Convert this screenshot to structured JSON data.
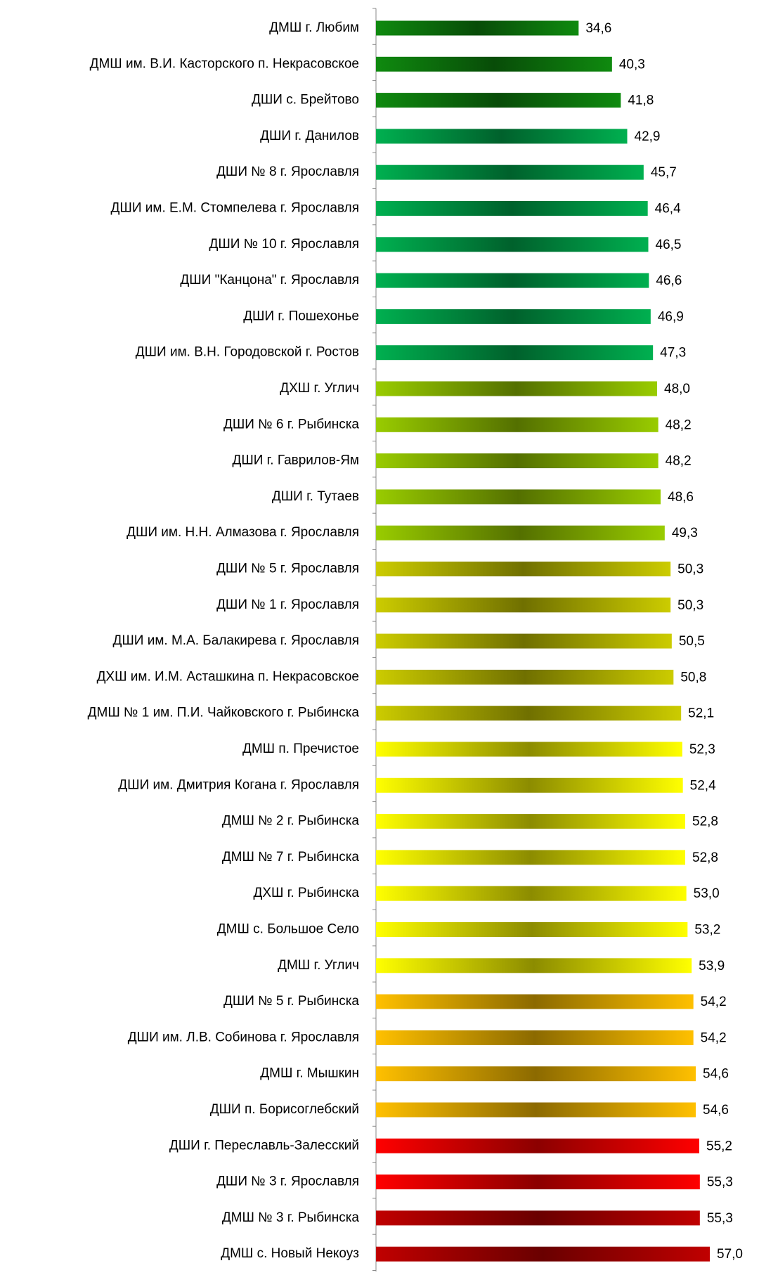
{
  "chart_data": {
    "type": "bar",
    "orientation": "horizontal",
    "categories": [
      "ДМШ г. Любим",
      "ДМШ им. В.И. Касторского п. Некрасовское",
      "ДШИ с. Брейтово",
      "ДШИ г. Данилов",
      "ДШИ № 8 г. Ярославля",
      "ДШИ им. Е.М. Стомпелева г. Ярославля",
      "ДШИ № 10 г. Ярославля",
      "ДШИ \"Канцона\" г. Ярославля",
      "ДШИ г. Пошехонье",
      "ДШИ им. В.Н. Городовской г. Ростов",
      "ДХШ г. Углич",
      "ДШИ № 6 г. Рыбинска",
      "ДШИ г. Гаврилов-Ям",
      "ДШИ г. Тутаев",
      "ДШИ им. Н.Н. Алмазова г. Ярославля",
      "ДШИ № 5 г. Ярославля",
      "ДШИ № 1 г. Ярославля",
      "ДШИ им. М.А. Балакирева г. Ярославля",
      "ДХШ им. И.М. Асташкина п. Некрасовское",
      "ДМШ № 1 им. П.И. Чайковского г. Рыбинска",
      "ДМШ п. Пречистое",
      "ДШИ им. Дмитрия Когана г. Ярославля",
      "ДМШ № 2 г. Рыбинска",
      "ДМШ № 7 г. Рыбинска",
      "ДХШ г. Рыбинска",
      "ДМШ с. Большое Село",
      "ДМШ г. Углич",
      "ДШИ № 5 г. Рыбинска",
      "ДШИ им. Л.В. Собинова г. Ярославля",
      "ДМШ г. Мышкин",
      "ДШИ п. Борисоглебский",
      "ДШИ г. Переславль-Залесский",
      "ДШИ № 3 г. Ярославля",
      "ДМШ № 3 г. Рыбинска",
      "ДМШ с. Новый Некоуз"
    ],
    "values": [
      34.6,
      40.3,
      41.8,
      42.9,
      45.7,
      46.4,
      46.5,
      46.6,
      46.9,
      47.3,
      48.0,
      48.2,
      48.2,
      48.6,
      49.3,
      50.3,
      50.3,
      50.5,
      50.8,
      52.1,
      52.3,
      52.4,
      52.8,
      52.8,
      53.0,
      53.2,
      53.9,
      54.2,
      54.2,
      54.6,
      54.6,
      55.2,
      55.3,
      55.3,
      57.0
    ],
    "value_labels": [
      "34,6",
      "40,3",
      "41,8",
      "42,9",
      "45,7",
      "46,4",
      "46,5",
      "46,6",
      "46,9",
      "47,3",
      "48,0",
      "48,2",
      "48,2",
      "48,6",
      "49,3",
      "50,3",
      "50,3",
      "50,5",
      "50,8",
      "52,1",
      "52,3",
      "52,4",
      "52,8",
      "52,8",
      "53,0",
      "53,2",
      "53,9",
      "54,2",
      "54,2",
      "54,6",
      "54,6",
      "55,2",
      "55,3",
      "55,3",
      "57,0"
    ],
    "colors": [
      "#0f8a0f",
      "#0f8a0f",
      "#0f8a0f",
      "#00b050",
      "#00b050",
      "#00b050",
      "#00b050",
      "#00b050",
      "#00b050",
      "#00b050",
      "#99cc00",
      "#99cc00",
      "#99cc00",
      "#99cc00",
      "#99cc00",
      "#cccc00",
      "#cccc00",
      "#cccc00",
      "#cccc00",
      "#cccc00",
      "#ffff00",
      "#ffff00",
      "#ffff00",
      "#ffff00",
      "#ffff00",
      "#ffff00",
      "#ffff00",
      "#ffc000",
      "#ffc000",
      "#ffc000",
      "#ffc000",
      "#ff0000",
      "#ff0000",
      "#c00000",
      "#c00000"
    ],
    "xlim": [
      0,
      60
    ]
  }
}
